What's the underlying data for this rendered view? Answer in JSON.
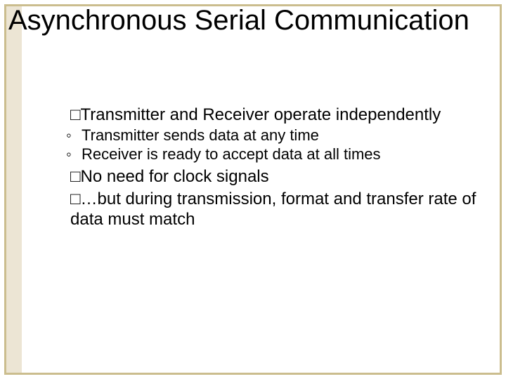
{
  "slide": {
    "title": "Asynchronous Serial Communication",
    "border_color": "#cbb d8e",
    "border_color_hex": "#cbbd8e",
    "strip_color": "#ece5d4",
    "background": "#ffffff",
    "title_fontsize": 40,
    "body_fontsize_l1": 24,
    "body_fontsize_l2": 22,
    "text_color": "#000000",
    "bullet_box_glyph": "□",
    "bullet_ring_glyph": "◦",
    "bullets": [
      {
        "level": 1,
        "prefix_glyph": "□",
        "text": "Transmitter and Receiver operate independently",
        "sub": [
          {
            "level": 2,
            "prefix_glyph": "◦",
            "text": "Transmitter sends data at any time"
          },
          {
            "level": 2,
            "prefix_glyph": "◦",
            "text": "Receiver is ready to accept data at all times"
          }
        ]
      },
      {
        "level": 1,
        "prefix_glyph": "□",
        "text": "No need for clock signals",
        "sub": []
      },
      {
        "level": 1,
        "prefix_glyph": "□",
        "text": "…but during transmission, format and transfer rate of data must match",
        "sub": []
      }
    ]
  }
}
